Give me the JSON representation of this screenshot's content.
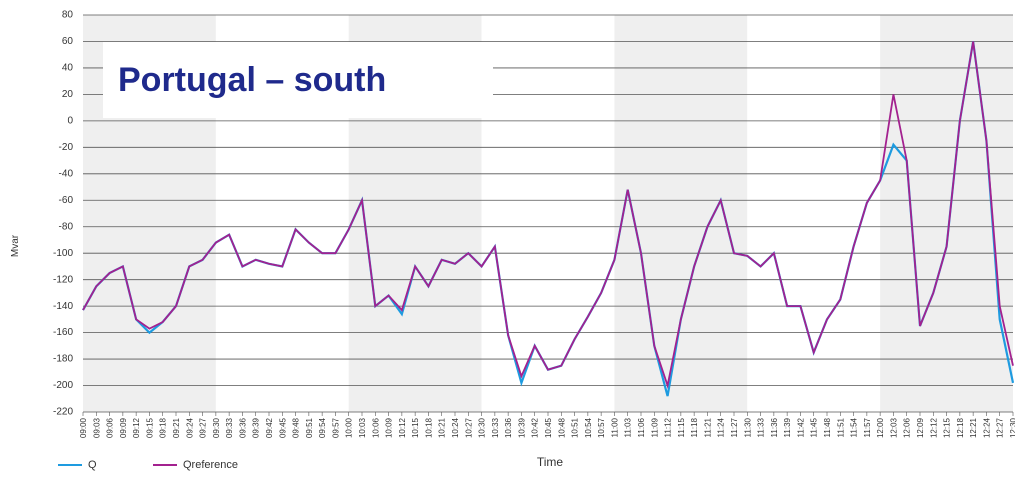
{
  "chart_data": {
    "type": "line",
    "title": "Portugal – south",
    "y_label": "Mvar",
    "x_label": "Time",
    "categories": [
      "09:00",
      "09:03",
      "09:06",
      "09:09",
      "09:12",
      "09:15",
      "09:18",
      "09:21",
      "09:24",
      "09:27",
      "09:30",
      "09:33",
      "09:36",
      "09:39",
      "09:42",
      "09:45",
      "09:48",
      "09:51",
      "09:54",
      "09:57",
      "10:00",
      "10:03",
      "10:06",
      "10:09",
      "10:12",
      "10:15",
      "10:18",
      "10:21",
      "10:24",
      "10:27",
      "10:30",
      "10:33",
      "10:36",
      "10:39",
      "10:42",
      "10:45",
      "10:48",
      "10:51",
      "10:54",
      "10:57",
      "11:00",
      "11:03",
      "11:06",
      "11:09",
      "11:12",
      "11:15",
      "11:18",
      "11:21",
      "11:24",
      "11:27",
      "11:30",
      "11:33",
      "11:36",
      "11:39",
      "11:42",
      "11:45",
      "11:48",
      "11:51",
      "11:54",
      "11:57",
      "12:00",
      "12:03",
      "12:06",
      "12:09",
      "12:12",
      "12:15",
      "12:18",
      "12:21",
      "12:24",
      "12:27",
      "12:30"
    ],
    "series": [
      {
        "name": "Q",
        "color": "#1e9be0",
        "values": [
          -143,
          -125,
          -115,
          -110,
          -150,
          -160,
          -152,
          -140,
          -110,
          -105,
          -92,
          -86,
          -110,
          -105,
          -108,
          -110,
          -82,
          -92,
          -100,
          -100,
          -82,
          -60,
          -140,
          -132,
          -146,
          -110,
          -125,
          -105,
          -108,
          -100,
          -110,
          -95,
          -162,
          -198,
          -170,
          -188,
          -185,
          -165,
          -148,
          -130,
          -105,
          -52,
          -100,
          -170,
          -208,
          -150,
          -110,
          -80,
          -60,
          -100,
          -102,
          -110,
          -100,
          -140,
          -140,
          -175,
          -150,
          -135,
          -95,
          -62,
          -45,
          -18,
          -30,
          -155,
          -130,
          -95,
          0,
          60,
          -15,
          -150,
          -198
        ]
      },
      {
        "name": "Qreference",
        "color": "#a3218f",
        "values": [
          -143,
          -125,
          -115,
          -110,
          -150,
          -157,
          -152,
          -140,
          -110,
          -105,
          -92,
          -86,
          -110,
          -105,
          -108,
          -110,
          -82,
          -92,
          -100,
          -100,
          -82,
          -60,
          -140,
          -132,
          -143,
          -110,
          -125,
          -105,
          -108,
          -100,
          -110,
          -95,
          -162,
          -193,
          -170,
          -188,
          -185,
          -165,
          -148,
          -130,
          -105,
          -52,
          -100,
          -170,
          -200,
          -150,
          -110,
          -80,
          -60,
          -100,
          -102,
          -110,
          -100,
          -140,
          -140,
          -175,
          -150,
          -135,
          -95,
          -62,
          -45,
          20,
          -30,
          -155,
          -130,
          -95,
          0,
          60,
          -15,
          -140,
          -185
        ]
      }
    ],
    "ylim": [
      -220,
      80
    ],
    "yticks": [
      80,
      60,
      40,
      20,
      0,
      -20,
      -40,
      -60,
      -80,
      -100,
      -120,
      -140,
      -160,
      -180,
      -200,
      -220
    ],
    "grid": true
  }
}
